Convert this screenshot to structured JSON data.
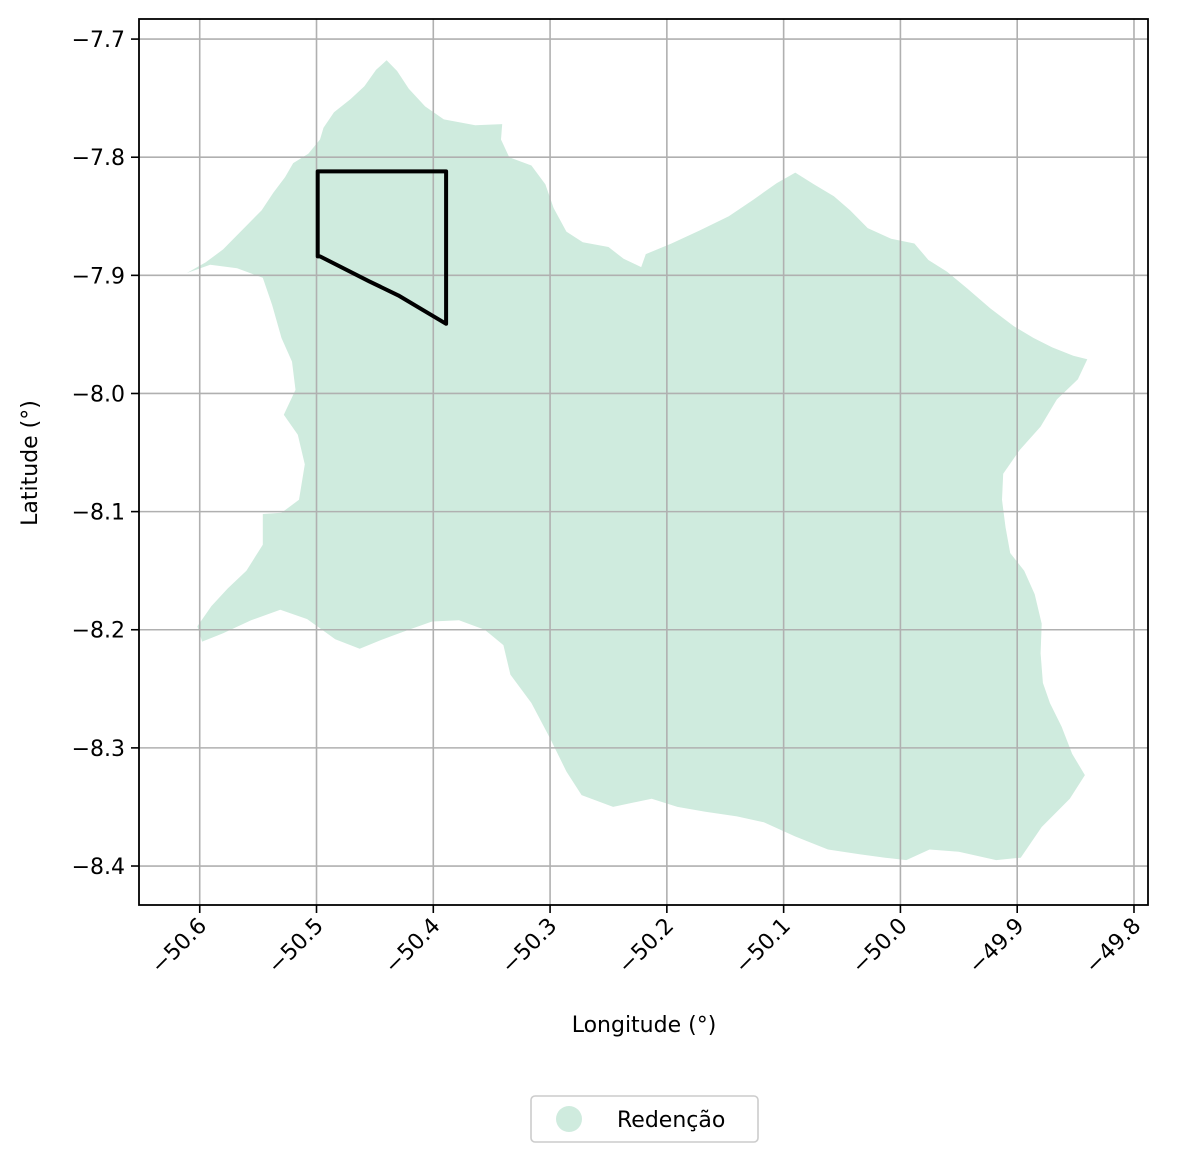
{
  "chart_data": {
    "type": "map",
    "xlabel": "Longitude (°)",
    "ylabel": "Latitude (°)",
    "xlim": [
      -50.652,
      -49.788
    ],
    "ylim": [
      -8.433,
      -7.683
    ],
    "grid": true,
    "x_ticks": [
      {
        "value": -50.6,
        "label": "−50.6"
      },
      {
        "value": -50.5,
        "label": "−50.5"
      },
      {
        "value": -50.4,
        "label": "−50.4"
      },
      {
        "value": -50.3,
        "label": "−50.3"
      },
      {
        "value": -50.2,
        "label": "−50.2"
      },
      {
        "value": -50.1,
        "label": "−50.1"
      },
      {
        "value": -50.0,
        "label": "−50.0"
      },
      {
        "value": -49.9,
        "label": "−49.9"
      },
      {
        "value": -49.8,
        "label": "−49.8"
      }
    ],
    "y_ticks": [
      {
        "value": -7.7,
        "label": "−7.7"
      },
      {
        "value": -7.8,
        "label": "−7.8"
      },
      {
        "value": -7.9,
        "label": "−7.9"
      },
      {
        "value": -8.0,
        "label": "−8.0"
      },
      {
        "value": -8.1,
        "label": "−8.1"
      },
      {
        "value": -8.2,
        "label": "−8.2"
      },
      {
        "value": -8.3,
        "label": "−8.3"
      },
      {
        "value": -8.4,
        "label": "−8.4"
      }
    ],
    "region": {
      "name": "Redenção",
      "color": "#cfebde",
      "boundary": [
        [
          -50.611,
          -7.898
        ],
        [
          -50.595,
          -7.889
        ],
        [
          -50.58,
          -7.878
        ],
        [
          -50.57,
          -7.868
        ],
        [
          -50.56,
          -7.858
        ],
        [
          -50.547,
          -7.845
        ],
        [
          -50.537,
          -7.83
        ],
        [
          -50.527,
          -7.817
        ],
        [
          -50.52,
          -7.805
        ],
        [
          -50.507,
          -7.797
        ],
        [
          -50.497,
          -7.785
        ],
        [
          -50.494,
          -7.775
        ],
        [
          -50.485,
          -7.762
        ],
        [
          -50.471,
          -7.751
        ],
        [
          -50.459,
          -7.74
        ],
        [
          -50.449,
          -7.726
        ],
        [
          -50.44,
          -7.718
        ],
        [
          -50.431,
          -7.727
        ],
        [
          -50.421,
          -7.742
        ],
        [
          -50.407,
          -7.757
        ],
        [
          -50.391,
          -7.768
        ],
        [
          -50.364,
          -7.773
        ],
        [
          -50.341,
          -7.772
        ],
        [
          -50.342,
          -7.785
        ],
        [
          -50.335,
          -7.8
        ],
        [
          -50.316,
          -7.807
        ],
        [
          -50.304,
          -7.823
        ],
        [
          -50.297,
          -7.843
        ],
        [
          -50.286,
          -7.863
        ],
        [
          -50.272,
          -7.872
        ],
        [
          -50.25,
          -7.876
        ],
        [
          -50.237,
          -7.886
        ],
        [
          -50.222,
          -7.893
        ],
        [
          -50.218,
          -7.882
        ],
        [
          -50.196,
          -7.873
        ],
        [
          -50.172,
          -7.862
        ],
        [
          -50.147,
          -7.85
        ],
        [
          -50.126,
          -7.836
        ],
        [
          -50.106,
          -7.822
        ],
        [
          -50.09,
          -7.813
        ],
        [
          -50.074,
          -7.823
        ],
        [
          -50.057,
          -7.833
        ],
        [
          -50.043,
          -7.845
        ],
        [
          -50.028,
          -7.86
        ],
        [
          -50.008,
          -7.869
        ],
        [
          -49.988,
          -7.873
        ],
        [
          -49.976,
          -7.887
        ],
        [
          -49.96,
          -7.897
        ],
        [
          -49.943,
          -7.911
        ],
        [
          -49.923,
          -7.928
        ],
        [
          -49.903,
          -7.943
        ],
        [
          -49.886,
          -7.953
        ],
        [
          -49.87,
          -7.961
        ],
        [
          -49.852,
          -7.968
        ],
        [
          -49.84,
          -7.971
        ],
        [
          -49.848,
          -7.988
        ],
        [
          -49.866,
          -8.005
        ],
        [
          -49.88,
          -8.028
        ],
        [
          -49.898,
          -8.048
        ],
        [
          -49.912,
          -8.068
        ],
        [
          -49.913,
          -8.09
        ],
        [
          -49.91,
          -8.113
        ],
        [
          -49.906,
          -8.135
        ],
        [
          -49.894,
          -8.15
        ],
        [
          -49.885,
          -8.17
        ],
        [
          -49.879,
          -8.195
        ],
        [
          -49.88,
          -8.22
        ],
        [
          -49.878,
          -8.245
        ],
        [
          -49.872,
          -8.262
        ],
        [
          -49.862,
          -8.282
        ],
        [
          -49.853,
          -8.305
        ],
        [
          -49.842,
          -8.323
        ],
        [
          -49.855,
          -8.343
        ],
        [
          -49.879,
          -8.367
        ],
        [
          -49.897,
          -8.393
        ],
        [
          -49.918,
          -8.395
        ],
        [
          -49.95,
          -8.388
        ],
        [
          -49.975,
          -8.386
        ],
        [
          -49.995,
          -8.395
        ],
        [
          -50.013,
          -8.393
        ],
        [
          -50.035,
          -8.39
        ],
        [
          -50.062,
          -8.386
        ],
        [
          -50.09,
          -8.375
        ],
        [
          -50.117,
          -8.363
        ],
        [
          -50.14,
          -8.358
        ],
        [
          -50.167,
          -8.354
        ],
        [
          -50.191,
          -8.35
        ],
        [
          -50.213,
          -8.343
        ],
        [
          -50.246,
          -8.35
        ],
        [
          -50.273,
          -8.34
        ],
        [
          -50.286,
          -8.32
        ],
        [
          -50.3,
          -8.292
        ],
        [
          -50.316,
          -8.262
        ],
        [
          -50.334,
          -8.238
        ],
        [
          -50.34,
          -8.213
        ],
        [
          -50.356,
          -8.2
        ],
        [
          -50.378,
          -8.192
        ],
        [
          -50.401,
          -8.193
        ],
        [
          -50.421,
          -8.2
        ],
        [
          -50.443,
          -8.208
        ],
        [
          -50.463,
          -8.216
        ],
        [
          -50.484,
          -8.208
        ],
        [
          -50.508,
          -8.191
        ],
        [
          -50.531,
          -8.183
        ],
        [
          -50.556,
          -8.192
        ],
        [
          -50.58,
          -8.203
        ],
        [
          -50.598,
          -8.21
        ],
        [
          -50.602,
          -8.197
        ],
        [
          -50.59,
          -8.18
        ],
        [
          -50.576,
          -8.165
        ],
        [
          -50.56,
          -8.15
        ],
        [
          -50.546,
          -8.128
        ],
        [
          -50.546,
          -8.102
        ],
        [
          -50.53,
          -8.101
        ],
        [
          -50.515,
          -8.09
        ],
        [
          -50.51,
          -8.06
        ],
        [
          -50.516,
          -8.035
        ],
        [
          -50.528,
          -8.018
        ],
        [
          -50.518,
          -7.997
        ],
        [
          -50.521,
          -7.973
        ],
        [
          -50.53,
          -7.953
        ],
        [
          -50.538,
          -7.925
        ],
        [
          -50.546,
          -7.902
        ],
        [
          -50.568,
          -7.894
        ],
        [
          -50.591,
          -7.891
        ],
        [
          -50.611,
          -7.898
        ]
      ]
    },
    "outline_polygon": [
      [
        -50.499,
        -7.812
      ],
      [
        -50.389,
        -7.812
      ],
      [
        -50.389,
        -7.941
      ],
      [
        -50.43,
        -7.917
      ],
      [
        -50.455,
        -7.905
      ],
      [
        -50.497,
        -7.884
      ],
      [
        -50.499,
        -7.884
      ],
      [
        -50.499,
        -7.812
      ]
    ],
    "legend": {
      "placement": "bottom-center",
      "entries": [
        {
          "label": "Redenção",
          "color": "#cfebde",
          "marker": "circle"
        }
      ]
    }
  }
}
